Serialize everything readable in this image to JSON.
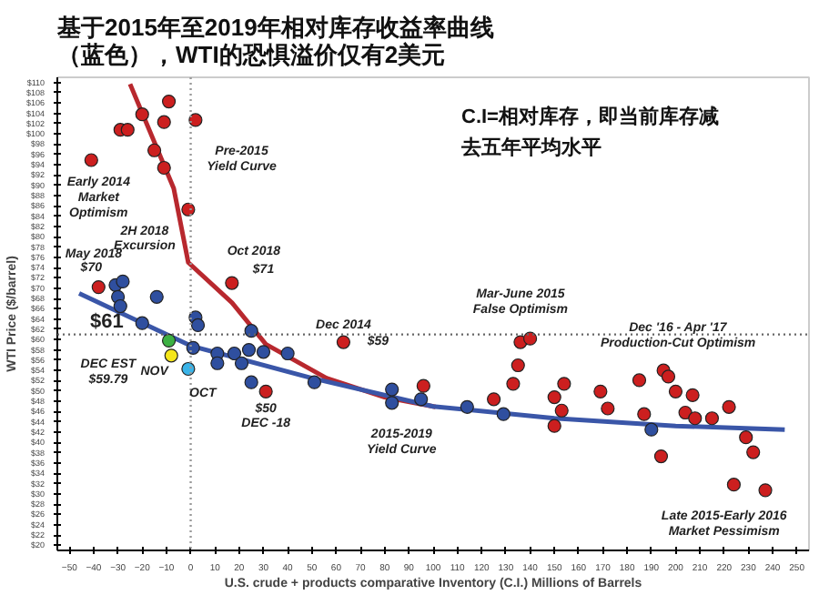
{
  "chart_data": {
    "type": "scatter",
    "title": "基于2015年至2019年相对库存收益率曲线（蓝色），WTI的恐惧溢价仅有2美元",
    "xlabel": "U.S. crude + products comparative Inventory (C.I.) Millions of Barrels",
    "ylabel": "WTI Price ($/barrel)",
    "xlim": [
      -55,
      255
    ],
    "ylim": [
      19,
      111
    ],
    "xticks": [
      -50,
      -40,
      -30,
      -20,
      -10,
      0,
      10,
      20,
      30,
      40,
      50,
      60,
      70,
      80,
      90,
      100,
      110,
      120,
      130,
      140,
      150,
      160,
      170,
      180,
      190,
      200,
      210,
      220,
      230,
      240,
      250
    ],
    "yticks": [
      {
        "value": 20,
        "label": "$20"
      },
      {
        "value": 22,
        "label": "$22"
      },
      {
        "value": 24,
        "label": "$24"
      },
      {
        "value": 26,
        "label": "$26"
      },
      {
        "value": 28,
        "label": "$28"
      },
      {
        "value": 30,
        "label": "$30"
      },
      {
        "value": 32,
        "label": "$32"
      },
      {
        "value": 34,
        "label": "$34"
      },
      {
        "value": 36,
        "label": "$36"
      },
      {
        "value": 38,
        "label": "$38"
      },
      {
        "value": 40,
        "label": "$40"
      },
      {
        "value": 42,
        "label": "$42"
      },
      {
        "value": 44,
        "label": "$44"
      },
      {
        "value": 46,
        "label": "$46"
      },
      {
        "value": 48,
        "label": "$48"
      },
      {
        "value": 50,
        "label": "$50"
      },
      {
        "value": 52,
        "label": "$52"
      },
      {
        "value": 54,
        "label": "$54"
      },
      {
        "value": 56,
        "label": "$56"
      },
      {
        "value": 58,
        "label": "$58"
      },
      {
        "value": 60,
        "label": "$60"
      },
      {
        "value": 62,
        "label": "$62"
      },
      {
        "value": 64,
        "label": "$64"
      },
      {
        "value": 66,
        "label": "$66"
      },
      {
        "value": 68,
        "label": "$68"
      },
      {
        "value": 70,
        "label": "$70"
      },
      {
        "value": 72,
        "label": "$72"
      },
      {
        "value": 74,
        "label": "$74"
      },
      {
        "value": 76,
        "label": "$76"
      },
      {
        "value": 78,
        "label": "$78"
      },
      {
        "value": 80,
        "label": "$80"
      },
      {
        "value": 82,
        "label": "$82"
      },
      {
        "value": 84,
        "label": "$84"
      },
      {
        "value": 86,
        "label": "$86"
      },
      {
        "value": 88,
        "label": "$88"
      },
      {
        "value": 90,
        "label": "$90"
      },
      {
        "value": 92,
        "label": "$92"
      },
      {
        "value": 94,
        "label": "$94"
      },
      {
        "value": 96,
        "label": "$96"
      },
      {
        "value": 98,
        "label": "$98"
      },
      {
        "value": 100,
        "label": "$100"
      },
      {
        "value": 102,
        "label": "$102"
      },
      {
        "value": 104,
        "label": "$104"
      },
      {
        "value": 106,
        "label": "$106"
      },
      {
        "value": 108,
        "label": "$108"
      },
      {
        "value": 110,
        "label": "$110"
      }
    ],
    "grid": false,
    "marker": "circle",
    "series": [
      {
        "type": "line",
        "marker": "none",
        "color": "#b8282e",
        "x": [
          -25,
          -7,
          -1,
          17,
          31,
          56,
          80,
          101
        ],
        "values": [
          109.7,
          89.4,
          75,
          67.2,
          59.1,
          52.5,
          48.8,
          46.9
        ]
      },
      {
        "type": "line",
        "marker": "none",
        "color": "#3a56a8",
        "x": [
          -46,
          0,
          50,
          100,
          150,
          200,
          245
        ],
        "values": [
          69,
          58.8,
          52.5,
          47,
          44.7,
          43.2,
          42.5
        ]
      },
      {
        "color": "#cc1f1f",
        "x": [
          -9,
          -20,
          -11,
          2,
          -29,
          -26,
          -15,
          -11,
          -41,
          -1,
          -38,
          17,
          63,
          31,
          96,
          125,
          133,
          135,
          136,
          140,
          150,
          154,
          153,
          150,
          169,
          172,
          185,
          187,
          195,
          197,
          200,
          207,
          204,
          208,
          215,
          222,
          229,
          232,
          194,
          224,
          237
        ],
        "values": [
          106.3,
          103.8,
          102.3,
          102.7,
          100.8,
          100.8,
          96.8,
          93.4,
          94.9,
          85.3,
          70.2,
          71,
          59.5,
          49.9,
          51,
          48.4,
          51.4,
          55,
          59.5,
          60.2,
          48.8,
          51.4,
          46.2,
          43.2,
          49.9,
          46.6,
          52.1,
          45.5,
          54,
          52.8,
          49.9,
          49.2,
          45.8,
          44.7,
          44.7,
          46.9,
          41,
          38.1,
          37.3,
          31.8,
          30.7
        ]
      },
      {
        "color": "#2f4f9f",
        "x": [
          -31,
          -28,
          -30,
          -29,
          -14,
          -20,
          2,
          3,
          1,
          11,
          11,
          18,
          21,
          25,
          24,
          30,
          25,
          40,
          51,
          83,
          83,
          95,
          114,
          129,
          190
        ],
        "values": [
          70.6,
          71.3,
          68.3,
          66.5,
          68.3,
          63.2,
          64.3,
          62.8,
          58.4,
          57.3,
          55.4,
          57.3,
          55.4,
          61.7,
          58,
          57.6,
          51.7,
          57.3,
          51.7,
          50.3,
          47.7,
          48.4,
          46.9,
          45.5,
          42.5
        ]
      },
      {
        "color": "#3cb043",
        "x": [
          -9
        ],
        "values": [
          59.8
        ]
      },
      {
        "color": "#f5e61a",
        "x": [
          -8
        ],
        "values": [
          56.9
        ]
      },
      {
        "color": "#3ab4e8",
        "x": [
          -1
        ],
        "values": [
          54.3
        ]
      }
    ],
    "ref_lines": [
      {
        "axis": "y",
        "value": 61,
        "label": "$61",
        "color": "#666666",
        "line_style": "dotted"
      },
      {
        "axis": "x",
        "value": 0,
        "color": "#999999",
        "line_style": "dotted"
      }
    ],
    "annotations": [
      "C.I=相对库存，即当前库存减去五年平均水平",
      "Early 2014\nMarket\nOptimism",
      "Pre-2015\nYield Curve",
      "May 2018",
      "$70",
      "2H 2018\nExcursion",
      "Oct 2018",
      "$71",
      "DEC EST\n$59.79",
      "NOV",
      "OCT",
      "$50\nDEC -18",
      {
        "text": "Dec 2014",
        "x": 63,
        "y": 59.5
      },
      {
        "text": "$59",
        "x": 63,
        "y": 59.5
      },
      "2015-2019\nYield Curve",
      "Mar-June 2015\nFalse Optimism",
      "Dec '16 - Apr '17\nProduction-Cut Optimism",
      "Late 2015-Early 2016\nMarket Pessimism"
    ]
  }
}
